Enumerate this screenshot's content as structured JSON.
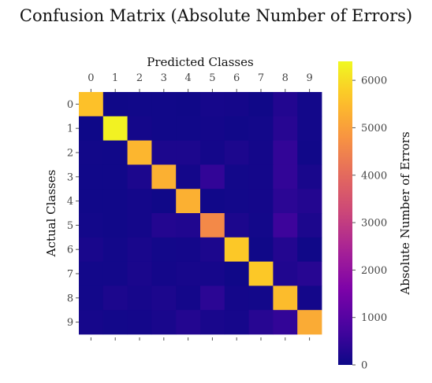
{
  "chart_data": {
    "type": "heatmap",
    "title": "Confusion Matrix (Absolute Number of Errors)",
    "xlabel": "Predicted Classes",
    "ylabel": "Actual Classes",
    "x_categories": [
      "0",
      "1",
      "2",
      "3",
      "4",
      "5",
      "6",
      "7",
      "8",
      "9"
    ],
    "y_categories": [
      "0",
      "1",
      "2",
      "3",
      "4",
      "5",
      "6",
      "7",
      "8",
      "9"
    ],
    "x_axis_position": "top",
    "colormap": "plasma",
    "vmin": 0,
    "vmax": 6400,
    "matrix": [
      [
        5600,
        40,
        60,
        50,
        40,
        120,
        110,
        40,
        280,
        80
      ],
      [
        20,
        6300,
        90,
        60,
        50,
        90,
        60,
        80,
        350,
        80
      ],
      [
        70,
        60,
        5400,
        200,
        200,
        100,
        200,
        100,
        500,
        60
      ],
      [
        50,
        60,
        200,
        5300,
        100,
        500,
        80,
        100,
        500,
        160
      ],
      [
        50,
        60,
        100,
        40,
        5300,
        60,
        80,
        100,
        400,
        300
      ],
      [
        80,
        60,
        100,
        300,
        250,
        4600,
        200,
        80,
        650,
        200
      ],
      [
        160,
        80,
        160,
        80,
        100,
        200,
        5700,
        40,
        300,
        40
      ],
      [
        80,
        80,
        170,
        100,
        130,
        120,
        40,
        5700,
        250,
        350
      ],
      [
        80,
        200,
        130,
        200,
        100,
        400,
        100,
        80,
        5500,
        100
      ],
      [
        120,
        80,
        100,
        160,
        300,
        160,
        120,
        350,
        500,
        5200
      ]
    ],
    "colorbar": {
      "label": "Absolute Number of Errors",
      "ticks": [
        0,
        1000,
        2000,
        3000,
        4000,
        5000,
        6000
      ]
    }
  }
}
